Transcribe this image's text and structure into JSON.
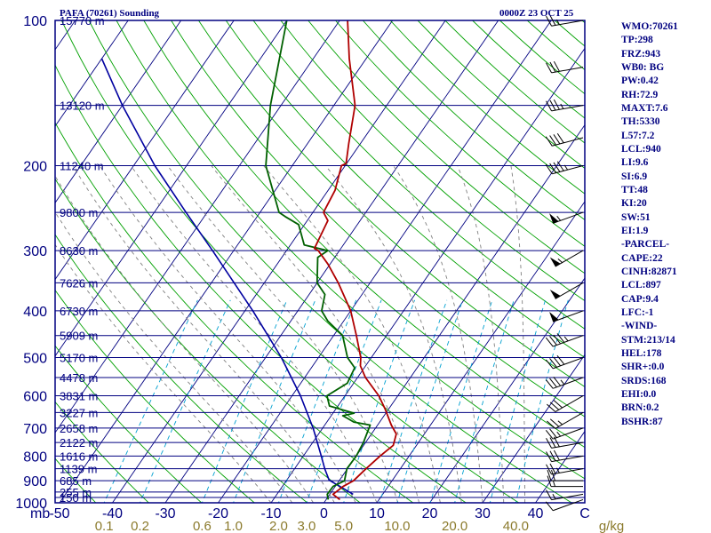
{
  "header": {
    "title": "PAFA (70261) Sounding",
    "datetime": "0000Z 23 OCT 25"
  },
  "chart_data": {
    "type": "skew-t",
    "title": "PAFA (70261) Sounding",
    "timestamp": "0000Z 23 OCT 25",
    "pressure_ticks": [
      "100",
      "200",
      "300",
      "400",
      "500",
      "600",
      "700",
      "800",
      "900",
      "1000"
    ],
    "pressure_tick_values": [
      100,
      200,
      300,
      400,
      500,
      600,
      700,
      800,
      900,
      1000
    ],
    "temperature_ticks": [
      "-50",
      "-40",
      "-30",
      "-20",
      "-10",
      "0",
      "10",
      "20",
      "30",
      "40",
      "C"
    ],
    "temperature_tick_values": [
      -50,
      -40,
      -30,
      -20,
      -10,
      0,
      10,
      20,
      30,
      40
    ],
    "x_unit_label": "mb",
    "mixing_ratio_labels": [
      "0.1",
      "0.2",
      "0.6",
      "1.0",
      "2.0",
      "3.0",
      "5.0",
      "10.0",
      "20.0",
      "40.0",
      "g/kg"
    ],
    "mixing_ratio_values": [
      0.1,
      0.2,
      0.6,
      1.0,
      2.0,
      3.0,
      5.0,
      10.0,
      20.0,
      40.0
    ],
    "height_levels": [
      {
        "label": "15770 m",
        "p": 100
      },
      {
        "label": "13120 m",
        "p": 150
      },
      {
        "label": "11240 m",
        "p": 200
      },
      {
        "label": "9800 m",
        "p": 250
      },
      {
        "label": "8630 m",
        "p": 300
      },
      {
        "label": "7626 m",
        "p": 350
      },
      {
        "label": "6730 m",
        "p": 400
      },
      {
        "label": "5909 m",
        "p": 450
      },
      {
        "label": "5170 m",
        "p": 500
      },
      {
        "label": "4478 m",
        "p": 550
      },
      {
        "label": "3831 m",
        "p": 600
      },
      {
        "label": "3227 m",
        "p": 650
      },
      {
        "label": "2658 m",
        "p": 700
      },
      {
        "label": "2122 m",
        "p": 750
      },
      {
        "label": "1616 m",
        "p": 800
      },
      {
        "label": "1139 m",
        "p": 850
      },
      {
        "label": "685 m",
        "p": 900
      },
      {
        "label": "255 m",
        "p": 950
      },
      {
        "label": "150 m",
        "p": 975
      }
    ],
    "temperature_profile": [
      {
        "p": 985,
        "t": 2.6
      },
      {
        "p": 960,
        "t": 0.6
      },
      {
        "p": 925,
        "t": 1.5
      },
      {
        "p": 900,
        "t": 2.7
      },
      {
        "p": 850,
        "t": 3.5
      },
      {
        "p": 800,
        "t": 4.5
      },
      {
        "p": 760,
        "t": 5.6
      },
      {
        "p": 720,
        "t": 4.7
      },
      {
        "p": 690,
        "t": 2.6
      },
      {
        "p": 640,
        "t": -0.6
      },
      {
        "p": 600,
        "t": -3.6
      },
      {
        "p": 550,
        "t": -8.5
      },
      {
        "p": 520,
        "t": -11.0
      },
      {
        "p": 500,
        "t": -12.0
      },
      {
        "p": 450,
        "t": -15.7
      },
      {
        "p": 400,
        "t": -20.0
      },
      {
        "p": 350,
        "t": -26.0
      },
      {
        "p": 320,
        "t": -30.4
      },
      {
        "p": 300,
        "t": -34.0
      },
      {
        "p": 297,
        "t": -35.0
      },
      {
        "p": 260,
        "t": -36.1
      },
      {
        "p": 250,
        "t": -38.0
      },
      {
        "p": 225,
        "t": -38.7
      },
      {
        "p": 200,
        "t": -40.7
      },
      {
        "p": 198,
        "t": -40.1
      },
      {
        "p": 180,
        "t": -42.2
      },
      {
        "p": 150,
        "t": -46.0
      },
      {
        "p": 120,
        "t": -53.2
      },
      {
        "p": 100,
        "t": -58.5
      }
    ],
    "dewpoint_profile": [
      {
        "p": 985,
        "t": 0.4
      },
      {
        "p": 960,
        "t": -0.5
      },
      {
        "p": 925,
        "t": -0.4
      },
      {
        "p": 900,
        "t": 1.0
      },
      {
        "p": 850,
        "t": -0.1
      },
      {
        "p": 800,
        "t": 0.0
      },
      {
        "p": 750,
        "t": -0.4
      },
      {
        "p": 690,
        "t": -1.4
      },
      {
        "p": 680,
        "t": -4.9
      },
      {
        "p": 668,
        "t": -6.6
      },
      {
        "p": 660,
        "t": -7.8
      },
      {
        "p": 652,
        "t": -6.0
      },
      {
        "p": 630,
        "t": -11.6
      },
      {
        "p": 600,
        "t": -13.4
      },
      {
        "p": 565,
        "t": -11.2
      },
      {
        "p": 525,
        "t": -11.8
      },
      {
        "p": 500,
        "t": -14.5
      },
      {
        "p": 450,
        "t": -18.3
      },
      {
        "p": 420,
        "t": -23.0
      },
      {
        "p": 400,
        "t": -25.5
      },
      {
        "p": 370,
        "t": -27.0
      },
      {
        "p": 350,
        "t": -30.0
      },
      {
        "p": 310,
        "t": -33.2
      },
      {
        "p": 300,
        "t": -32.2
      },
      {
        "p": 292,
        "t": -37.4
      },
      {
        "p": 265,
        "t": -41.1
      },
      {
        "p": 255,
        "t": -44.7
      },
      {
        "p": 250,
        "t": -46.4
      },
      {
        "p": 200,
        "t": -55.0
      },
      {
        "p": 150,
        "t": -62.0
      },
      {
        "p": 100,
        "t": -70.0
      }
    ],
    "parcel_profile": [
      {
        "p": 960,
        "t": 4.4
      },
      {
        "p": 897,
        "t": -2.0
      },
      {
        "p": 850,
        "t": -4.3
      },
      {
        "p": 800,
        "t": -6.6
      },
      {
        "p": 700,
        "t": -11.8
      },
      {
        "p": 600,
        "t": -18.4
      },
      {
        "p": 500,
        "t": -27.0
      },
      {
        "p": 400,
        "t": -38.5
      },
      {
        "p": 300,
        "t": -54.0
      },
      {
        "p": 250,
        "t": -64.0
      },
      {
        "p": 200,
        "t": -76.0
      },
      {
        "p": 150,
        "t": -90.0
      },
      {
        "p": 120,
        "t": -100.0
      }
    ],
    "wind_barbs": [
      {
        "p": 985,
        "dir": 250,
        "kt": 10
      },
      {
        "p": 960,
        "dir": 260,
        "kt": 15
      },
      {
        "p": 925,
        "dir": 270,
        "kt": 15
      },
      {
        "p": 900,
        "dir": 270,
        "kt": 20
      },
      {
        "p": 850,
        "dir": 260,
        "kt": 25
      },
      {
        "p": 800,
        "dir": 260,
        "kt": 30
      },
      {
        "p": 750,
        "dir": 260,
        "kt": 30
      },
      {
        "p": 700,
        "dir": 250,
        "kt": 25
      },
      {
        "p": 650,
        "dir": 240,
        "kt": 25
      },
      {
        "p": 600,
        "dir": 240,
        "kt": 30
      },
      {
        "p": 550,
        "dir": 250,
        "kt": 35
      },
      {
        "p": 500,
        "dir": 250,
        "kt": 40
      },
      {
        "p": 450,
        "dir": 250,
        "kt": 45
      },
      {
        "p": 400,
        "dir": 250,
        "kt": 50
      },
      {
        "p": 350,
        "dir": 240,
        "kt": 50
      },
      {
        "p": 300,
        "dir": 240,
        "kt": 55
      },
      {
        "p": 250,
        "dir": 250,
        "kt": 55
      },
      {
        "p": 200,
        "dir": 255,
        "kt": 45
      },
      {
        "p": 175,
        "dir": 255,
        "kt": 40
      },
      {
        "p": 150,
        "dir": 260,
        "kt": 35
      },
      {
        "p": 125,
        "dir": 260,
        "kt": 30
      },
      {
        "p": 100,
        "dir": 260,
        "kt": 25
      }
    ]
  },
  "indices": [
    "WMO:70261",
    "TP:298",
    "FRZ:943",
    "WB0: BG",
    "PW:0.42",
    "RH:72.9",
    "MAXT:7.6",
    "TH:5330",
    "L57:7.2",
    "LCL:940",
    "LI:9.6",
    "SI:6.9",
    "TT:48",
    "KI:20",
    "SW:51",
    "EI:1.9",
    "-PARCEL-",
    "CAPE:22",
    "CINH:82871",
    "LCL:897",
    "CAP:9.4",
    "LFC:-1",
    "-WIND-",
    "STM:213/14",
    "HEL:178",
    "SHR+:0.0",
    "SRDS:168",
    "EHI:0.0",
    "BRN:0.2",
    "BSHR:87"
  ],
  "colors": {
    "background": "#ffffff",
    "frame": "#000080",
    "isobar": "#000080",
    "isotherm": "#000080",
    "dry_adiabat": "#00a000",
    "moist_adiabat": "#808080",
    "mixing_ratio": "#00a0d0",
    "temperature": "#b00000",
    "dewpoint": "#006000",
    "parcel": "#0000a0",
    "wind": "#000000",
    "text": "#000080",
    "mixing_label": "#8b7a2c"
  }
}
